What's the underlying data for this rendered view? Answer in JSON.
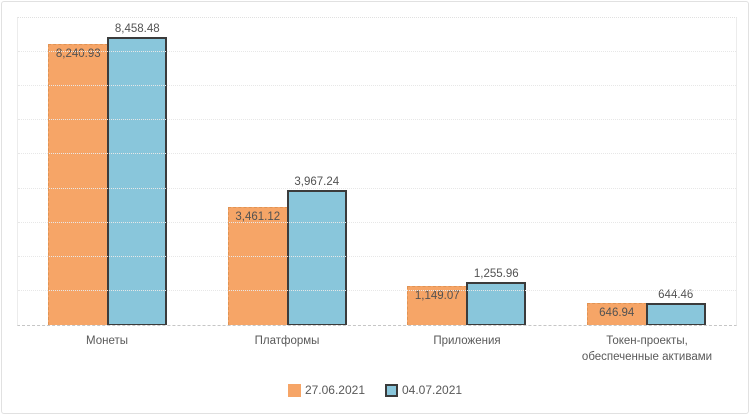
{
  "chart": {
    "background": "#ffffff",
    "text_color": "#595959",
    "gridline_color": "#e7e7e7",
    "axis_line_color": "#c6c6c6"
  },
  "chart_data": {
    "type": "bar",
    "title": "",
    "xlabel": "",
    "ylabel": "",
    "categories": [
      "Монеты",
      "Платформы",
      "Приложения",
      "Токен-проекты,\nобеспеченные активами"
    ],
    "series": [
      {
        "name": "27.06.2021",
        "color": "#f6a567",
        "border_color": "rgba(198,126,62,0.45)",
        "values": [
          8240.93,
          3461.12,
          1149.07,
          646.94
        ],
        "value_labels": [
          "8,240.93",
          "3,461.12",
          "1,149.07",
          "646.94"
        ],
        "label_position": "inside"
      },
      {
        "name": "04.07.2021",
        "color": "#89c6db",
        "border_color": "#3b3b3b",
        "values": [
          8458.48,
          3967.24,
          1255.96,
          644.46
        ],
        "value_labels": [
          "8,458.48",
          "3,967.24",
          "1,255.96",
          "644.46"
        ],
        "label_position": "outside"
      }
    ],
    "ylim": [
      0,
      9000
    ],
    "gridline_step": 1000,
    "grid": "horizontal-dotted",
    "y_axis_labels_visible": false,
    "legend_position": "bottom"
  }
}
